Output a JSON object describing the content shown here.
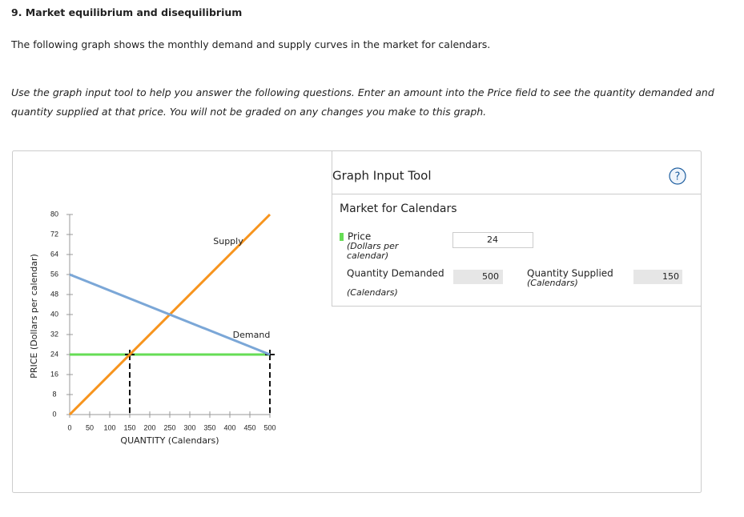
{
  "header": {
    "title": "9. Market equilibrium and disequilibrium"
  },
  "intro": "The following graph shows the monthly demand and supply curves in the market for calendars.",
  "instructions": "Use the graph input tool to help you answer the following questions. Enter an amount into the Price field to see the quantity demanded and quantity supplied at that price. You will not be graded on any changes you make to this graph.",
  "tool": {
    "title": "Graph Input Tool",
    "help": "?",
    "subtitle": "Market for Calendars",
    "price_label": "Price",
    "price_unit": "(Dollars per calendar)",
    "demanded_label": "Quantity Demanded",
    "demanded_unit": "(Calendars)",
    "supplied_label": "Quantity Supplied",
    "supplied_unit": "(Calendars)"
  },
  "chart_data": {
    "type": "line",
    "x_label": "QUANTITY (Calendars)",
    "y_label": "PRICE (Dollars per calendar)",
    "xlim": [
      0,
      500
    ],
    "ylim": [
      0,
      80
    ],
    "xticks": [
      0,
      50,
      100,
      150,
      200,
      250,
      300,
      350,
      400,
      450,
      500
    ],
    "yticks": [
      0,
      8,
      16,
      24,
      32,
      40,
      48,
      56,
      64,
      72,
      80
    ],
    "series": [
      {
        "name": "Supply",
        "color": "#f7941d",
        "x": [
          0,
          500
        ],
        "values": [
          0,
          80
        ]
      },
      {
        "name": "Demand",
        "color": "#7ba7d7",
        "x": [
          0,
          500
        ],
        "values": [
          56,
          24
        ]
      }
    ],
    "price_line": {
      "color": "#66dd55",
      "value": 24,
      "quantity_demanded": 500,
      "quantity_supplied": 150
    }
  }
}
